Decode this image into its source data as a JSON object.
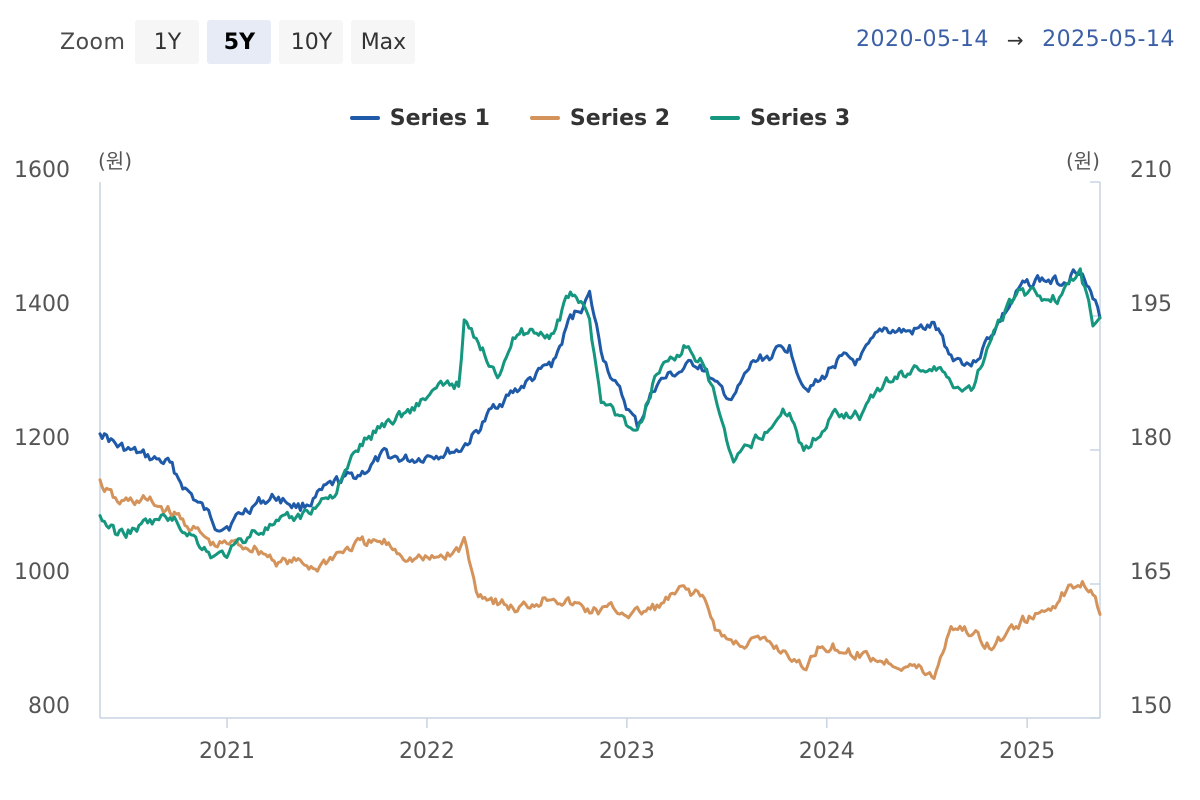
{
  "toolbar": {
    "zoom_label": "Zoom",
    "buttons": [
      "1Y",
      "5Y",
      "10Y",
      "Max"
    ],
    "active": "5Y"
  },
  "range": {
    "from": "2020-05-14",
    "arrow": "→",
    "to": "2025-05-14"
  },
  "colors": {
    "series1": "#1f5aa8",
    "series2": "#d4935a",
    "series3": "#15967e",
    "axis": "#c8d4e3",
    "text": "#555555"
  },
  "chart_data": {
    "type": "line",
    "x_range": [
      "2020-05-14",
      "2025-05-14"
    ],
    "x_ticks": [
      "2021",
      "2022",
      "2023",
      "2024",
      "2025"
    ],
    "left_axis": {
      "unit": "(원)",
      "min": 800,
      "max": 1600,
      "ticks": [
        800,
        1000,
        1200,
        1400,
        1600
      ]
    },
    "right_axis": {
      "unit": "(원)",
      "min": 150,
      "max": 210,
      "ticks": [
        150,
        165,
        180,
        195,
        210
      ]
    },
    "grid": false,
    "legend": "top-center",
    "series": [
      {
        "name": "Series 1",
        "axis": "left",
        "color": "#1f5aa8",
        "points": [
          [
            "2020-05-14",
            1230
          ],
          [
            "2020-06-15",
            1205
          ],
          [
            "2020-08-01",
            1190
          ],
          [
            "2020-09-15",
            1180
          ],
          [
            "2020-10-20",
            1140
          ],
          [
            "2020-12-10",
            1090
          ],
          [
            "2021-01-05",
            1090
          ],
          [
            "2021-02-20",
            1120
          ],
          [
            "2021-04-01",
            1130
          ],
          [
            "2021-05-15",
            1115
          ],
          [
            "2021-06-15",
            1130
          ],
          [
            "2021-07-20",
            1150
          ],
          [
            "2021-09-01",
            1165
          ],
          [
            "2021-10-15",
            1190
          ],
          [
            "2021-12-01",
            1185
          ],
          [
            "2022-01-10",
            1195
          ],
          [
            "2022-02-28",
            1200
          ],
          [
            "2022-04-01",
            1225
          ],
          [
            "2022-05-10",
            1270
          ],
          [
            "2022-06-15",
            1290
          ],
          [
            "2022-07-20",
            1310
          ],
          [
            "2022-08-20",
            1330
          ],
          [
            "2022-09-20",
            1395
          ],
          [
            "2022-10-25",
            1430
          ],
          [
            "2022-11-15",
            1350
          ],
          [
            "2022-12-15",
            1290
          ],
          [
            "2023-01-20",
            1235
          ],
          [
            "2023-02-25",
            1300
          ],
          [
            "2023-04-15",
            1320
          ],
          [
            "2023-05-15",
            1330
          ],
          [
            "2023-06-15",
            1290
          ],
          [
            "2023-07-15",
            1275
          ],
          [
            "2023-08-20",
            1330
          ],
          [
            "2023-10-01",
            1345
          ],
          [
            "2023-10-25",
            1355
          ],
          [
            "2023-11-20",
            1300
          ],
          [
            "2023-12-20",
            1300
          ],
          [
            "2024-01-20",
            1335
          ],
          [
            "2024-03-01",
            1330
          ],
          [
            "2024-04-15",
            1380
          ],
          [
            "2024-06-01",
            1375
          ],
          [
            "2024-07-15",
            1385
          ],
          [
            "2024-08-15",
            1340
          ],
          [
            "2024-09-25",
            1330
          ],
          [
            "2024-11-01",
            1380
          ],
          [
            "2024-12-20",
            1440
          ],
          [
            "2025-01-20",
            1455
          ],
          [
            "2025-03-01",
            1450
          ],
          [
            "2025-04-08",
            1475
          ],
          [
            "2025-05-01",
            1420
          ],
          [
            "2025-05-14",
            1400
          ]
        ]
      },
      {
        "name": "Series 2",
        "axis": "left",
        "color": "#d4935a",
        "points": [
          [
            "2020-05-14",
            1150
          ],
          [
            "2020-06-15",
            1120
          ],
          [
            "2020-08-01",
            1125
          ],
          [
            "2020-09-15",
            1110
          ],
          [
            "2020-10-20",
            1090
          ],
          [
            "2020-12-10",
            1055
          ],
          [
            "2021-01-05",
            1060
          ],
          [
            "2021-02-20",
            1055
          ],
          [
            "2021-04-01",
            1035
          ],
          [
            "2021-05-15",
            1030
          ],
          [
            "2021-06-15",
            1025
          ],
          [
            "2021-07-20",
            1045
          ],
          [
            "2021-09-01",
            1060
          ],
          [
            "2021-10-15",
            1060
          ],
          [
            "2021-12-01",
            1040
          ],
          [
            "2022-01-10",
            1035
          ],
          [
            "2022-02-28",
            1050
          ],
          [
            "2022-03-10",
            1065
          ],
          [
            "2022-04-01",
            990
          ],
          [
            "2022-05-10",
            975
          ],
          [
            "2022-06-15",
            960
          ],
          [
            "2022-07-20",
            975
          ],
          [
            "2022-08-20",
            985
          ],
          [
            "2022-09-20",
            970
          ],
          [
            "2022-10-25",
            960
          ],
          [
            "2022-12-15",
            960
          ],
          [
            "2023-01-20",
            955
          ],
          [
            "2023-02-25",
            965
          ],
          [
            "2023-04-15",
            990
          ],
          [
            "2023-05-15",
            985
          ],
          [
            "2023-06-15",
            930
          ],
          [
            "2023-07-15",
            910
          ],
          [
            "2023-08-20",
            915
          ],
          [
            "2023-10-01",
            905
          ],
          [
            "2023-10-25",
            895
          ],
          [
            "2023-11-20",
            870
          ],
          [
            "2023-12-20",
            910
          ],
          [
            "2024-01-20",
            905
          ],
          [
            "2024-03-01",
            895
          ],
          [
            "2024-04-15",
            885
          ],
          [
            "2024-06-01",
            880
          ],
          [
            "2024-07-15",
            860
          ],
          [
            "2024-08-15",
            940
          ],
          [
            "2024-09-25",
            925
          ],
          [
            "2024-11-01",
            905
          ],
          [
            "2024-12-20",
            945
          ],
          [
            "2025-01-20",
            950
          ],
          [
            "2025-03-01",
            980
          ],
          [
            "2025-04-08",
            1005
          ],
          [
            "2025-05-01",
            995
          ],
          [
            "2025-05-14",
            965
          ]
        ]
      },
      {
        "name": "Series 3",
        "axis": "right",
        "color": "#15967e",
        "points": [
          [
            "2020-05-14",
            172.5
          ],
          [
            "2020-06-15",
            170.5
          ],
          [
            "2020-08-01",
            171.5
          ],
          [
            "2020-09-15",
            172.5
          ],
          [
            "2020-10-20",
            171.0
          ],
          [
            "2020-12-10",
            168.0
          ],
          [
            "2021-01-05",
            168.5
          ],
          [
            "2021-02-20",
            171.0
          ],
          [
            "2021-04-01",
            171.5
          ],
          [
            "2021-05-15",
            172.5
          ],
          [
            "2021-06-15",
            174.0
          ],
          [
            "2021-07-20",
            175.5
          ],
          [
            "2021-09-01",
            180.5
          ],
          [
            "2021-10-15",
            183.0
          ],
          [
            "2021-12-01",
            184.5
          ],
          [
            "2022-01-10",
            186.5
          ],
          [
            "2022-02-28",
            187.5
          ],
          [
            "2022-03-10",
            194.5
          ],
          [
            "2022-04-01",
            192.0
          ],
          [
            "2022-05-10",
            189.0
          ],
          [
            "2022-06-15",
            193.0
          ],
          [
            "2022-07-20",
            193.5
          ],
          [
            "2022-08-20",
            193.0
          ],
          [
            "2022-09-20",
            197.5
          ],
          [
            "2022-10-05",
            197.0
          ],
          [
            "2022-10-25",
            194.0
          ],
          [
            "2022-11-15",
            186.0
          ],
          [
            "2022-12-15",
            184.0
          ],
          [
            "2023-01-20",
            181.5
          ],
          [
            "2023-02-25",
            189.0
          ],
          [
            "2023-04-15",
            191.5
          ],
          [
            "2023-05-15",
            190.0
          ],
          [
            "2023-06-15",
            185.0
          ],
          [
            "2023-07-15",
            178.0
          ],
          [
            "2023-08-20",
            181.0
          ],
          [
            "2023-10-01",
            183.5
          ],
          [
            "2023-10-25",
            184.5
          ],
          [
            "2023-11-20",
            180.0
          ],
          [
            "2023-12-20",
            182.0
          ],
          [
            "2024-01-20",
            184.5
          ],
          [
            "2024-03-01",
            184.0
          ],
          [
            "2024-04-15",
            187.5
          ],
          [
            "2024-06-01",
            189.0
          ],
          [
            "2024-07-15",
            189.5
          ],
          [
            "2024-08-15",
            187.5
          ],
          [
            "2024-09-25",
            187.0
          ],
          [
            "2024-11-01",
            194.0
          ],
          [
            "2024-12-20",
            197.5
          ],
          [
            "2025-01-20",
            197.5
          ],
          [
            "2025-03-01",
            197.0
          ],
          [
            "2025-04-08",
            200.0
          ],
          [
            "2025-05-01",
            194.0
          ],
          [
            "2025-05-14",
            195.0
          ]
        ]
      }
    ]
  }
}
